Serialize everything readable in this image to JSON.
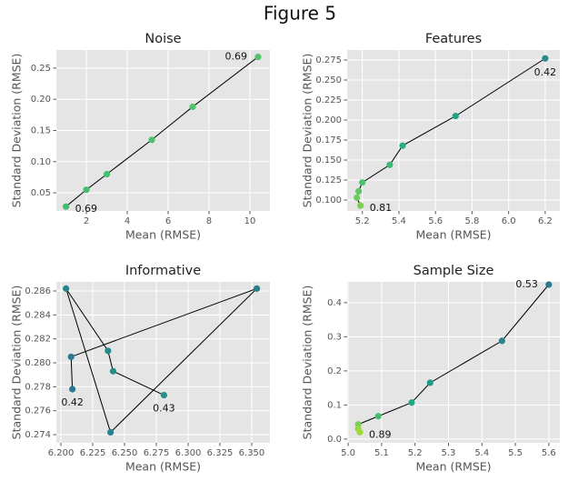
{
  "title": "Figure 5",
  "chart_data": [
    {
      "type": "line",
      "title": "Noise",
      "x_label": "Mean (RMSE)",
      "y_label": "Standard Deviation (RMSE)",
      "x": [
        1.0,
        2.0,
        3.0,
        5.2,
        7.2,
        10.4
      ],
      "values": [
        0.028,
        0.055,
        0.08,
        0.135,
        0.188,
        0.268
      ],
      "colors": [
        "#40bd72",
        "#43bf71",
        "#46c06f",
        "#4ac16d",
        "#4ec36b",
        "#52c569"
      ],
      "line_color": "#000000",
      "xlim": [
        0.53,
        10.98
      ],
      "ylim": [
        0.021,
        0.279
      ],
      "xticks": [
        2,
        4,
        6,
        8,
        10
      ],
      "yticks": [
        0.05,
        {
          "value": 0.1,
          "label": "0.10"
        },
        0.15,
        {
          "value": 0.2,
          "label": "0.20"
        },
        0.25
      ],
      "annotations": [
        {
          "text": "0.69",
          "index": 0
        },
        {
          "text": "0.69",
          "index": 5
        }
      ],
      "grid": true
    },
    {
      "type": "line",
      "title": "Features",
      "x_label": "Mean (RMSE)",
      "y_label": "Standard Deviation (RMSE)",
      "x": [
        5.19,
        5.17,
        5.18,
        5.2,
        5.35,
        5.42,
        5.71,
        6.2
      ],
      "values": [
        0.093,
        0.103,
        0.111,
        0.122,
        0.144,
        0.168,
        0.205,
        0.277
      ],
      "colors": [
        "#7ad151",
        "#6ccd5a",
        "#5ec962",
        "#4ac16d",
        "#3bbb75",
        "#28ae80",
        "#20a386",
        "#2a8b8c"
      ],
      "line_color": "#000000",
      "xlim": [
        5.117,
        6.28
      ],
      "ylim": [
        0.0864,
        0.2875
      ],
      "xticks": [
        5.2,
        5.4,
        5.6,
        5.8,
        {
          "value": 6,
          "label": "6.0"
        },
        6.2
      ],
      "yticks": [
        {
          "value": 0.1,
          "label": "0.100"
        },
        0.125,
        {
          "value": 0.15,
          "label": "0.150"
        },
        0.175,
        {
          "value": 0.2,
          "label": "0.200"
        },
        0.225,
        {
          "value": 0.25,
          "label": "0.250"
        },
        0.275
      ],
      "annotations": [
        {
          "text": "0.81",
          "index": 0
        },
        {
          "text": "0.42",
          "index": 7
        }
      ],
      "grid": true
    },
    {
      "type": "line",
      "title": "Informative",
      "x_label": "Mean (RMSE)",
      "y_label": "Standard Deviation (RMSE)",
      "x": [
        6.209,
        6.208,
        6.354,
        6.239,
        6.204,
        6.237,
        6.241,
        6.281
      ],
      "values": [
        0.2778,
        0.2805,
        0.2862,
        0.2742,
        0.2862,
        0.281,
        0.2793,
        0.2773
      ],
      "colors": [
        "#2a788e",
        "#297a8e",
        "#277f8e",
        "#25838e",
        "#23888e",
        "#228c8d",
        "#21908d",
        "#21918c"
      ],
      "line_color": "#000000",
      "xlim": [
        6.1964,
        6.3643
      ],
      "ylim": [
        0.27332,
        0.28676
      ],
      "xticks": [
        {
          "value": 6.2,
          "label": "6.200"
        },
        6.225,
        {
          "value": 6.25,
          "label": "6.250"
        },
        6.275,
        {
          "value": 6.3,
          "label": "6.300"
        },
        6.325,
        {
          "value": 6.35,
          "label": "6.350"
        }
      ],
      "yticks": [
        0.274,
        0.276,
        0.278,
        {
          "value": 0.28,
          "label": "0.280"
        },
        0.282,
        0.284,
        0.286
      ],
      "annotations": [
        {
          "text": "0.42",
          "index": 0
        },
        {
          "text": "0.43",
          "index": 7
        }
      ],
      "grid": true
    },
    {
      "type": "line",
      "title": "Sample Size",
      "x_label": "Mean (RMSE)",
      "y_label": "Standard Deviation (RMSE)",
      "x": [
        5.6,
        5.46,
        5.245,
        5.19,
        5.09,
        5.03,
        5.03,
        5.035
      ],
      "values": [
        0.453,
        0.288,
        0.165,
        0.107,
        0.067,
        0.043,
        0.03,
        0.02
      ],
      "colors": [
        "#2a788e",
        "#25858e",
        "#1f988b",
        "#22a884",
        "#44bf70",
        "#75d054",
        "#8fd744",
        "#a0da39"
      ],
      "line_color": "#000000",
      "xlim": [
        4.997,
        5.633
      ],
      "ylim": [
        -0.011,
        0.461
      ],
      "xticks": [
        {
          "value": 5,
          "label": "5.0"
        },
        5.1,
        5.2,
        5.3,
        5.4,
        5.5,
        5.6
      ],
      "yticks": [
        {
          "value": 0,
          "label": "0.0"
        },
        0.1,
        0.2,
        0.3,
        0.4
      ],
      "annotations": [
        {
          "text": "0.53",
          "index": 0
        },
        {
          "text": "0.89",
          "index": 7
        }
      ],
      "grid": true
    }
  ]
}
